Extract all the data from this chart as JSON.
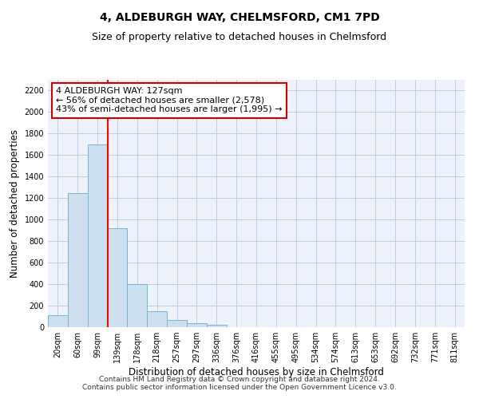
{
  "title": "4, ALDEBURGH WAY, CHELMSFORD, CM1 7PD",
  "subtitle": "Size of property relative to detached houses in Chelmsford",
  "xlabel": "Distribution of detached houses by size in Chelmsford",
  "ylabel": "Number of detached properties",
  "bin_labels": [
    "20sqm",
    "60sqm",
    "99sqm",
    "139sqm",
    "178sqm",
    "218sqm",
    "257sqm",
    "297sqm",
    "336sqm",
    "376sqm",
    "416sqm",
    "455sqm",
    "495sqm",
    "534sqm",
    "574sqm",
    "613sqm",
    "653sqm",
    "692sqm",
    "732sqm",
    "771sqm",
    "811sqm"
  ],
  "bar_values": [
    110,
    1250,
    1700,
    920,
    400,
    150,
    65,
    35,
    25,
    0,
    0,
    0,
    0,
    0,
    0,
    0,
    0,
    0,
    0,
    0,
    0
  ],
  "bar_color": "#cce0f0",
  "bar_edge_color": "#7ab3d4",
  "red_line_x": 2.5,
  "annotation_text": "4 ALDEBURGH WAY: 127sqm\n← 56% of detached houses are smaller (2,578)\n43% of semi-detached houses are larger (1,995) →",
  "annotation_box_color": "#ffffff",
  "annotation_box_edge_color": "#cc0000",
  "ylim": [
    0,
    2300
  ],
  "yticks": [
    0,
    200,
    400,
    600,
    800,
    1000,
    1200,
    1400,
    1600,
    1800,
    2000,
    2200
  ],
  "grid_color": "#c0cce0",
  "background_color": "#eef2fa",
  "footer": "Contains HM Land Registry data © Crown copyright and database right 2024.\nContains public sector information licensed under the Open Government Licence v3.0.",
  "title_fontsize": 10,
  "subtitle_fontsize": 9,
  "label_fontsize": 8.5,
  "tick_fontsize": 7,
  "footer_fontsize": 6.5,
  "annot_fontsize": 8
}
